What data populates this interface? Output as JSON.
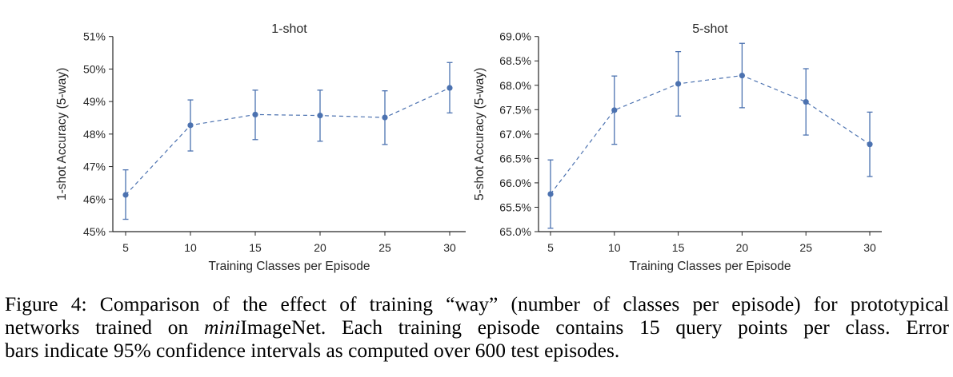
{
  "chart_data": [
    {
      "type": "line",
      "title": "1-shot",
      "xlabel": "Training Classes per Episode",
      "ylabel": "1-shot Accuracy (5-way)",
      "x": [
        5,
        10,
        15,
        20,
        25,
        30
      ],
      "xticks": [
        "5",
        "10",
        "15",
        "20",
        "25",
        "30"
      ],
      "yticks": [
        "45%",
        "46%",
        "47%",
        "48%",
        "49%",
        "50%",
        "51%"
      ],
      "ylim": [
        45,
        51
      ],
      "values": [
        46.13,
        48.27,
        48.6,
        48.57,
        48.51,
        49.42
      ],
      "err_low": [
        45.38,
        47.48,
        47.83,
        47.78,
        47.68,
        48.65
      ],
      "err_high": [
        46.9,
        49.05,
        49.35,
        49.35,
        49.33,
        50.2
      ],
      "line_style": "dashed",
      "color": "#4c72b0",
      "grid": false
    },
    {
      "type": "line",
      "title": "5-shot",
      "xlabel": "Training Classes per Episode",
      "ylabel": "5-shot Accuracy (5-way)",
      "x": [
        5,
        10,
        15,
        20,
        25,
        30
      ],
      "xticks": [
        "5",
        "10",
        "15",
        "20",
        "25",
        "30"
      ],
      "yticks": [
        "65.0%",
        "65.5%",
        "66.0%",
        "66.5%",
        "67.0%",
        "67.5%",
        "68.0%",
        "68.5%",
        "69.0%"
      ],
      "ylim": [
        65,
        69
      ],
      "values": [
        65.77,
        67.49,
        68.03,
        68.2,
        67.66,
        66.79
      ],
      "err_low": [
        65.07,
        66.79,
        67.37,
        67.54,
        66.98,
        66.13
      ],
      "err_high": [
        66.47,
        68.19,
        68.69,
        68.86,
        68.34,
        67.45
      ],
      "line_style": "dashed",
      "color": "#4c72b0",
      "grid": false
    }
  ],
  "caption": {
    "line1": "Figure 4: Comparison of the effect of training “way” (number of classes per episode) for prototypical",
    "line2_italic": "mini",
    "line2_pre": "networks trained on ",
    "line2_post": "ImageNet. Each training episode contains 15 query points per class. Error",
    "line3": "bars indicate 95% confidence intervals as computed over 600 test episodes."
  }
}
